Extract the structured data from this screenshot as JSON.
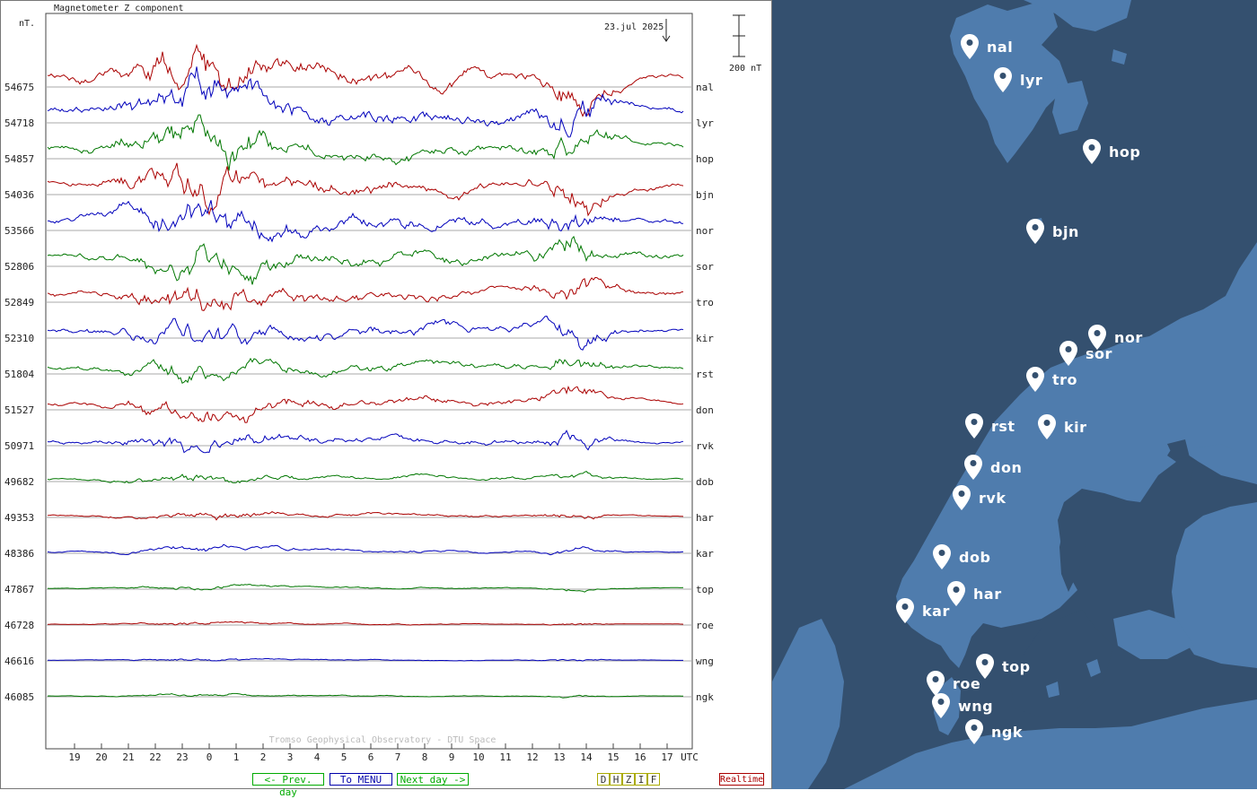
{
  "chart_data": {
    "type": "line",
    "title": "Magnetometer Z component",
    "ylabel": "nT.",
    "date": "23.jul 2025",
    "scale_label": "200 nT",
    "x_ticks": [
      "19",
      "20",
      "21",
      "22",
      "23",
      "0",
      "1",
      "2",
      "3",
      "4",
      "5",
      "6",
      "7",
      "8",
      "9",
      "10",
      "11",
      "12",
      "13",
      "14",
      "15",
      "16",
      "17"
    ],
    "x_unit": "UTC",
    "credit": "Tromso Geophysical Observatory - DTU Space",
    "grid": true,
    "series": [
      {
        "name": "nal",
        "baseline": "54675",
        "color": "#aa0000",
        "activity": 1.0
      },
      {
        "name": "lyr",
        "baseline": "54718",
        "color": "#0000bb",
        "activity": 1.0
      },
      {
        "name": "hop",
        "baseline": "54857",
        "color": "#007700",
        "activity": 0.9
      },
      {
        "name": "bjn",
        "baseline": "54036",
        "color": "#aa0000",
        "activity": 0.9
      },
      {
        "name": "nor",
        "baseline": "53566",
        "color": "#0000bb",
        "activity": 0.85
      },
      {
        "name": "sor",
        "baseline": "52806",
        "color": "#007700",
        "activity": 0.85
      },
      {
        "name": "tro",
        "baseline": "52849",
        "color": "#aa0000",
        "activity": 0.75
      },
      {
        "name": "kir",
        "baseline": "52310",
        "color": "#0000bb",
        "activity": 0.7
      },
      {
        "name": "rst",
        "baseline": "51804",
        "color": "#007700",
        "activity": 0.55
      },
      {
        "name": "don",
        "baseline": "51527",
        "color": "#aa0000",
        "activity": 0.55
      },
      {
        "name": "rvk",
        "baseline": "50971",
        "color": "#0000bb",
        "activity": 0.45
      },
      {
        "name": "dob",
        "baseline": "49682",
        "color": "#007700",
        "activity": 0.25
      },
      {
        "name": "har",
        "baseline": "49353",
        "color": "#aa0000",
        "activity": 0.2
      },
      {
        "name": "kar",
        "baseline": "48386",
        "color": "#0000bb",
        "activity": 0.18
      },
      {
        "name": "top",
        "baseline": "47867",
        "color": "#007700",
        "activity": 0.1
      },
      {
        "name": "roe",
        "baseline": "46728",
        "color": "#aa0000",
        "activity": 0.08
      },
      {
        "name": "wng",
        "baseline": "46616",
        "color": "#0000bb",
        "activity": 0.07
      },
      {
        "name": "ngk",
        "baseline": "46085",
        "color": "#007700",
        "activity": 0.07
      }
    ]
  },
  "nav": {
    "prev": "<- Prev. day",
    "menu": "To MENU",
    "next": "Next day ->",
    "realtime": "Realtime"
  },
  "components": [
    "D",
    "H",
    "Z",
    "I",
    "F"
  ],
  "map": {
    "ocean_color": "#34506f",
    "land_color": "#4f7cad",
    "stations": [
      "nal",
      "lyr",
      "hop",
      "bjn",
      "nor",
      "sor",
      "tro",
      "rst",
      "kir",
      "don",
      "rvk",
      "dob",
      "har",
      "kar",
      "top",
      "roe",
      "wng",
      "ngk"
    ]
  }
}
